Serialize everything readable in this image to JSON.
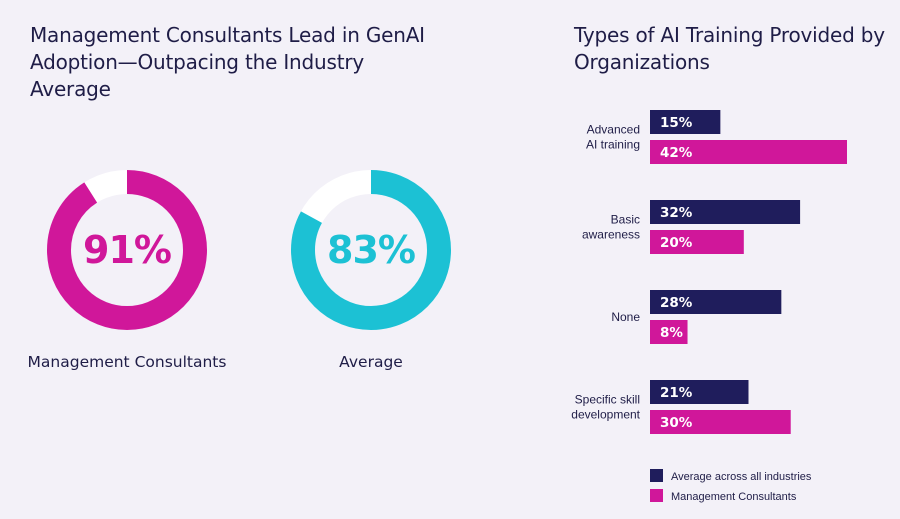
{
  "colors": {
    "navy": "#1f1d5c",
    "magenta": "#d0179a",
    "cyan": "#1cc1d4",
    "track": "#ffffff"
  },
  "chart_data": [
    {
      "type": "pie",
      "title": "Management Consultants Lead in GenAI Adoption—Outpacing the Industry Average",
      "series": [
        {
          "name": "Management Consultants",
          "value": 91,
          "value_label": "91%",
          "color": "#d0179a"
        },
        {
          "name": "Average",
          "value": 83,
          "value_label": "83%",
          "color": "#1cc1d4"
        }
      ]
    },
    {
      "type": "bar",
      "orientation": "horizontal",
      "title": "Types of AI Training Provided by Organizations",
      "categories": [
        "Advanced\nAI training",
        "Basic\nawareness",
        "None",
        "Specific skill\ndevelopment"
      ],
      "series": [
        {
          "name": "Average across all industries",
          "color": "#1f1d5c",
          "values": [
            15,
            32,
            28,
            21
          ],
          "labels": [
            "15%",
            "32%",
            "28%",
            "21%"
          ]
        },
        {
          "name": "Management Consultants",
          "color": "#d0179a",
          "values": [
            42,
            20,
            8,
            30
          ],
          "labels": [
            "42%",
            "20%",
            "8%",
            "30%"
          ]
        }
      ],
      "xlim": [
        0,
        42
      ],
      "legend": "bottom"
    }
  ]
}
